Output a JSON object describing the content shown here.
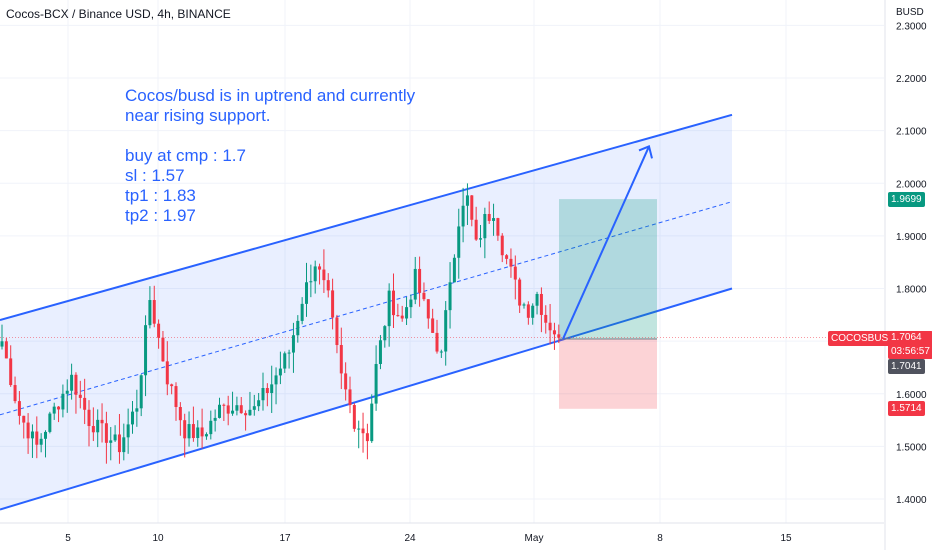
{
  "header": {
    "symbol_title": "Cocos-BCX / Binance USD, 4h, BINANCE"
  },
  "annotation": {
    "lines": [
      "Cocos/busd is in uptrend and currently",
      "near rising support.",
      "",
      "buy at cmp : 1.7",
      "sl : 1.57",
      "tp1 : 1.83",
      "tp2 : 1.97"
    ]
  },
  "price_axis": {
    "currency": "BUSD",
    "ticks": [
      "2.3000",
      "2.2000",
      "2.1000",
      "2.0000",
      "1.9000",
      "1.8000",
      "1.7000",
      "1.6000",
      "1.5000",
      "1.4000"
    ],
    "tags": {
      "target": {
        "value": "1.9699",
        "color": "#089981"
      },
      "symbol": {
        "label": "COCOSBUSD",
        "value": "1.7064",
        "countdown": "03:56:57",
        "color": "#f23645"
      },
      "entry": {
        "value": "1.7041",
        "color": "#50535e"
      },
      "stop": {
        "value": "1.5714",
        "color": "#f23645"
      }
    }
  },
  "time_axis": {
    "ticks": [
      "5",
      "10",
      "17",
      "24",
      "May",
      "8",
      "15"
    ]
  },
  "colors": {
    "up": "#089981",
    "down": "#f23645",
    "channel": "#2962ff"
  },
  "chart_data": {
    "type": "candlestick",
    "title": "Cocos-BCX / Binance USD, 4h, BINANCE",
    "ylabel": "BUSD",
    "ylim": [
      1.35,
      2.32
    ],
    "ohlc_close_path": [
      [
        0,
        1.7
      ],
      [
        4,
        1.56
      ],
      [
        8,
        1.5
      ],
      [
        12,
        1.57
      ],
      [
        16,
        1.63
      ],
      [
        20,
        1.55
      ],
      [
        24,
        1.52
      ],
      [
        27,
        1.5
      ],
      [
        31,
        1.58
      ],
      [
        34,
        1.78
      ],
      [
        38,
        1.63
      ],
      [
        42,
        1.53
      ],
      [
        46,
        1.52
      ],
      [
        50,
        1.57
      ],
      [
        54,
        1.58
      ],
      [
        58,
        1.57
      ],
      [
        62,
        1.62
      ],
      [
        66,
        1.68
      ],
      [
        69,
        1.78
      ],
      [
        72,
        1.85
      ],
      [
        75,
        1.78
      ],
      [
        78,
        1.63
      ],
      [
        81,
        1.55
      ],
      [
        84,
        1.52
      ],
      [
        86,
        1.65
      ],
      [
        89,
        1.78
      ],
      [
        92,
        1.74
      ],
      [
        95,
        1.82
      ],
      [
        98,
        1.74
      ],
      [
        101,
        1.67
      ],
      [
        103,
        1.82
      ],
      [
        105,
        1.93
      ],
      [
        107,
        1.97
      ],
      [
        109,
        1.88
      ],
      [
        111,
        1.93
      ],
      [
        113,
        1.95
      ],
      [
        115,
        1.88
      ],
      [
        117,
        1.83
      ],
      [
        119,
        1.78
      ],
      [
        121,
        1.76
      ],
      [
        123,
        1.79
      ],
      [
        125,
        1.74
      ],
      [
        127,
        1.72
      ],
      [
        128,
        1.7064
      ]
    ],
    "positions": {
      "entry": 1.7041,
      "stop_loss": 1.5714,
      "take_profit": 1.9699
    },
    "channel": {
      "support_start": 1.38,
      "support_end": 1.8,
      "resistance_start": 1.74,
      "resistance_end": 2.13
    }
  }
}
